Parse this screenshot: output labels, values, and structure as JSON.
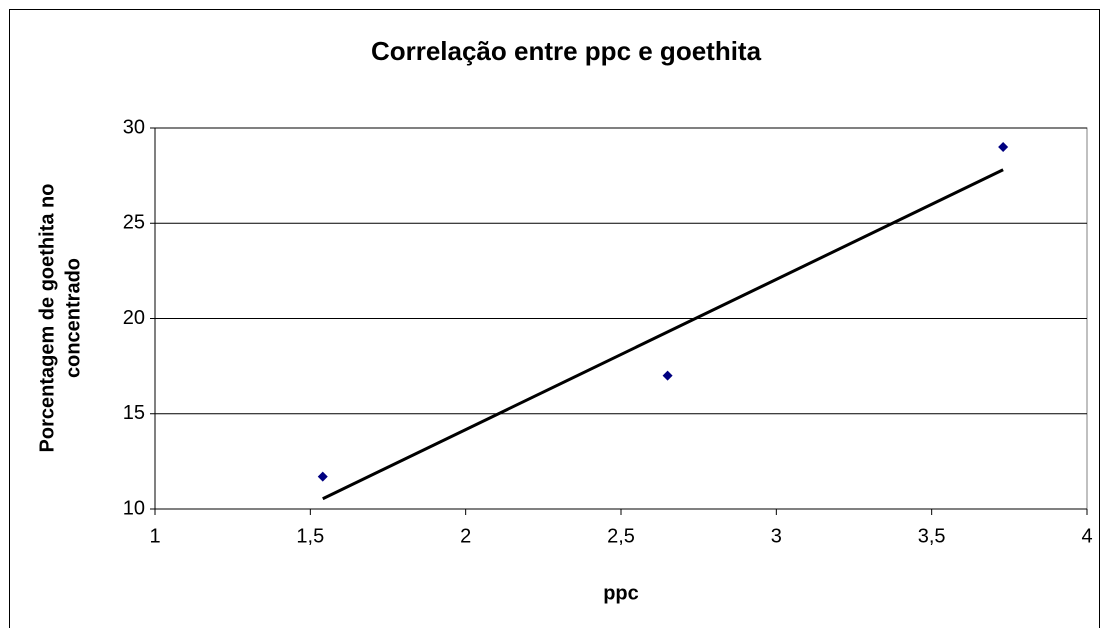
{
  "chart_data": {
    "type": "scatter",
    "title": "Correlação entre ppc e goethita",
    "xlabel": "ppc",
    "ylabel": [
      "Porcentagem de goethita no",
      "concentrado"
    ],
    "series": [
      {
        "x": [
          1.54,
          2.65,
          3.73
        ],
        "values": [
          11.7,
          17,
          29
        ],
        "color": "#000080"
      }
    ],
    "trendline": {
      "x": [
        1.54,
        3.73
      ],
      "values": [
        10.54,
        27.81
      ],
      "color": "#000000"
    },
    "xlim": [
      1,
      4
    ],
    "xticks": [
      1,
      {
        "value": 1.5,
        "label": "1,5"
      },
      2,
      {
        "value": 2.5,
        "label": "2,5"
      },
      3,
      {
        "value": 3.5,
        "label": "3,5"
      },
      4
    ],
    "ylim": [
      10,
      30
    ],
    "yticks": [
      10,
      15,
      20,
      25,
      30
    ],
    "grid": true
  }
}
